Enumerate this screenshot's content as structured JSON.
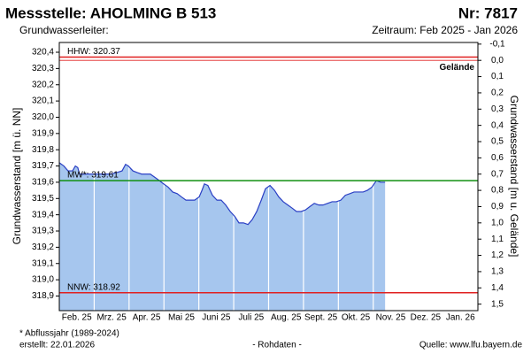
{
  "chart_data": {
    "type": "area",
    "title": "Messstelle: AHOLMING B 513",
    "number": "Nr: 7817",
    "subtitle": "Grundwasserleiter:",
    "period": "Zeitraum: Feb 2025 - Jan 2026",
    "y_label": "Grundwasserstand [m ü. NN]",
    "y2_label": "Grundwasserstand [m u. Gelände]",
    "fill_color": "#a6c6ee",
    "line_color": "#2a3fc4",
    "xlim": [
      0,
      12
    ],
    "xticks": [
      {
        "value": 0.5,
        "label": "Feb. 25"
      },
      {
        "value": 1.5,
        "label": "Mrz. 25"
      },
      {
        "value": 2.5,
        "label": "Apr. 25"
      },
      {
        "value": 3.5,
        "label": "Mai 25"
      },
      {
        "value": 4.5,
        "label": "Juni 25"
      },
      {
        "value": 5.5,
        "label": "Juli 25"
      },
      {
        "value": 6.5,
        "label": "Aug. 25"
      },
      {
        "value": 7.5,
        "label": "Sept. 25"
      },
      {
        "value": 8.5,
        "label": "Okt. 25"
      },
      {
        "value": 9.5,
        "label": "Nov. 25"
      },
      {
        "value": 10.5,
        "label": "Dez. 25"
      },
      {
        "value": 11.5,
        "label": "Jan. 26"
      }
    ],
    "xgrid": [
      1,
      2,
      3,
      4,
      5,
      6,
      7,
      8,
      9
    ],
    "ylim": [
      318.81,
      320.46
    ],
    "yticks": [
      {
        "value": 318.9,
        "label": "318,9"
      },
      {
        "value": 319.0,
        "label": "319,0"
      },
      {
        "value": 319.1,
        "label": "319,1"
      },
      {
        "value": 319.2,
        "label": "319,2"
      },
      {
        "value": 319.3,
        "label": "319,3"
      },
      {
        "value": 319.4,
        "label": "319,4"
      },
      {
        "value": 319.5,
        "label": "319,5"
      },
      {
        "value": 319.6,
        "label": "319,6"
      },
      {
        "value": 319.7,
        "label": "319,7"
      },
      {
        "value": 319.8,
        "label": "319,8"
      },
      {
        "value": 319.9,
        "label": "319,9"
      },
      {
        "value": 320.0,
        "label": "320,0"
      },
      {
        "value": 320.1,
        "label": "320,1"
      },
      {
        "value": 320.2,
        "label": "320,2"
      },
      {
        "value": 320.3,
        "label": "320,3"
      },
      {
        "value": 320.4,
        "label": "320,4"
      }
    ],
    "y2lim": [
      1.54,
      -0.11
    ],
    "y2ticks": [
      {
        "value": -0.1,
        "label": "-0,1"
      },
      {
        "value": 0,
        "label": "0,0"
      },
      {
        "value": 0.1,
        "label": "0,1"
      },
      {
        "value": 0.2,
        "label": "0,2"
      },
      {
        "value": 0.3,
        "label": "0,3"
      },
      {
        "value": 0.4,
        "label": "0,4"
      },
      {
        "value": 0.5,
        "label": "0,5"
      },
      {
        "value": 0.6,
        "label": "0,6"
      },
      {
        "value": 0.7,
        "label": "0,7"
      },
      {
        "value": 0.8,
        "label": "0,8"
      },
      {
        "value": 0.9,
        "label": "0,9"
      },
      {
        "value": 1.0,
        "label": "1,0"
      },
      {
        "value": 1.1,
        "label": "1,1"
      },
      {
        "value": 1.2,
        "label": "1,2"
      },
      {
        "value": 1.3,
        "label": "1,3"
      },
      {
        "value": 1.4,
        "label": "1,4"
      },
      {
        "value": 1.5,
        "label": "1,5"
      }
    ],
    "x": [
      0,
      0.13,
      0.25,
      0.38,
      0.46,
      0.53,
      0.58,
      0.71,
      0.84,
      0.96,
      1.04,
      1.17,
      1.35,
      1.47,
      1.65,
      1.8,
      1.9,
      1.98,
      2.11,
      2.23,
      2.36,
      2.49,
      2.61,
      2.74,
      2.87,
      2.99,
      3.12,
      3.25,
      3.38,
      3.5,
      3.63,
      3.76,
      3.88,
      4.01,
      4.09,
      4.16,
      4.26,
      4.39,
      4.52,
      4.64,
      4.77,
      4.9,
      5.03,
      5.15,
      5.28,
      5.41,
      5.53,
      5.66,
      5.79,
      5.91,
      6.04,
      6.17,
      6.29,
      6.42,
      6.55,
      6.68,
      6.8,
      6.93,
      7.06,
      7.18,
      7.31,
      7.44,
      7.56,
      7.69,
      7.82,
      7.94,
      8.07,
      8.2,
      8.33,
      8.45,
      8.58,
      8.71,
      8.83,
      8.96,
      9.09,
      9.21,
      9.34
    ],
    "values": [
      319.72,
      319.7,
      319.67,
      319.67,
      319.7,
      319.69,
      319.65,
      319.65,
      319.65,
      319.65,
      319.65,
      319.65,
      319.65,
      319.65,
      319.66,
      319.67,
      319.71,
      319.7,
      319.67,
      319.66,
      319.65,
      319.65,
      319.65,
      319.63,
      319.61,
      319.59,
      319.57,
      319.54,
      319.53,
      319.51,
      319.49,
      319.49,
      319.49,
      319.51,
      319.55,
      319.59,
      319.58,
      319.52,
      319.49,
      319.49,
      319.46,
      319.42,
      319.39,
      319.35,
      319.35,
      319.34,
      319.37,
      319.42,
      319.49,
      319.56,
      319.58,
      319.55,
      319.51,
      319.48,
      319.46,
      319.44,
      319.42,
      319.42,
      319.43,
      319.45,
      319.47,
      319.46,
      319.46,
      319.47,
      319.48,
      319.48,
      319.49,
      319.52,
      319.53,
      319.54,
      319.54,
      319.54,
      319.55,
      319.57,
      319.61,
      319.6,
      319.6
    ],
    "reference_lines": [
      {
        "label": "HHW: 320.37",
        "value": 320.37,
        "color": "#e02020"
      },
      {
        "label": "MW*: 319.61",
        "value": 319.61,
        "color": "#109010"
      },
      {
        "label": "NNW: 318.92",
        "value": 318.92,
        "color": "#e02020"
      }
    ],
    "ground_line": {
      "label": "Gelände",
      "y2": 0,
      "color": "#e02020"
    },
    "footnote": "* Abflussjahr (1989-2024)",
    "created": "erstellt:  22.01.2026",
    "data_note": "- Rohdaten -",
    "source": "Quelle: www.lfu.bayern.de",
    "source_color": "#1a1aff"
  }
}
